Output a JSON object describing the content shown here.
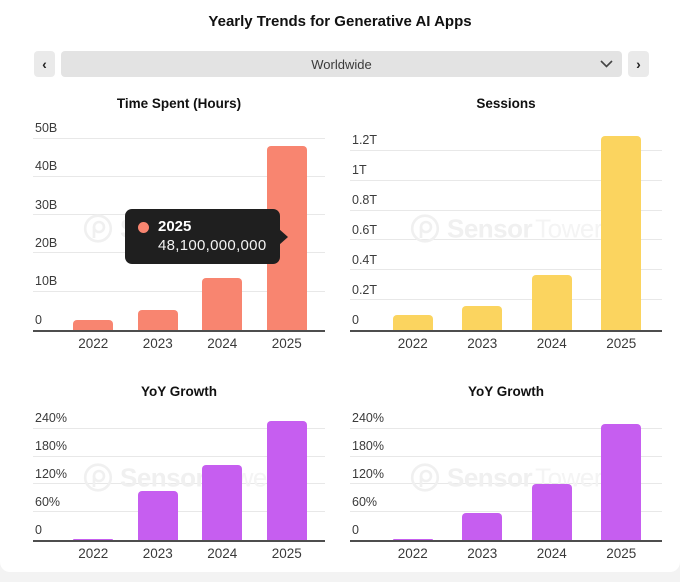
{
  "page": {
    "title": "Yearly Trends for Generative AI Apps"
  },
  "selector": {
    "value": "Worldwide",
    "prev_label": "‹",
    "next_label": "›"
  },
  "watermark": {
    "brand_bold": "Sensor",
    "brand_light": "Tower"
  },
  "colors": {
    "time_spent_bar": "#F88570",
    "sessions_bar": "#FBD45F",
    "yoy_bar": "#C65EF0",
    "tooltip_bg": "#1F1F1F",
    "gridline": "#E8E8E8",
    "axis_line": "#4E4E4E"
  },
  "chart_data": [
    {
      "id": "time-spent-hours",
      "type": "bar",
      "title": "Time Spent (Hours)",
      "categories": [
        "2022",
        "2023",
        "2024",
        "2025"
      ],
      "values": [
        2.5,
        5.2,
        13.5,
        48.1
      ],
      "unit": "billions of hours",
      "ylim": [
        0,
        53
      ],
      "yticks": [
        {
          "value": 0,
          "label": "0"
        },
        {
          "value": 10,
          "label": "10B"
        },
        {
          "value": 20,
          "label": "20B"
        },
        {
          "value": 30,
          "label": "30B"
        },
        {
          "value": 40,
          "label": "40B"
        },
        {
          "value": 50,
          "label": "50B"
        }
      ],
      "color": "#F88570",
      "tooltip": {
        "year": "2025",
        "value": "48,100,000,000"
      }
    },
    {
      "id": "sessions",
      "type": "bar",
      "title": "Sessions",
      "categories": [
        "2022",
        "2023",
        "2024",
        "2025"
      ],
      "values": [
        0.1,
        0.16,
        0.37,
        1.3
      ],
      "unit": "trillions of sessions",
      "ylim": [
        0,
        1.36
      ],
      "yticks": [
        {
          "value": 0,
          "label": "0"
        },
        {
          "value": 0.2,
          "label": "0.2T"
        },
        {
          "value": 0.4,
          "label": "0.4T"
        },
        {
          "value": 0.6,
          "label": "0.6T"
        },
        {
          "value": 0.8,
          "label": "0.8T"
        },
        {
          "value": 1.0,
          "label": "1T"
        },
        {
          "value": 1.2,
          "label": "1.2T"
        }
      ],
      "color": "#FBD45F"
    },
    {
      "id": "time-spent-yoy-growth",
      "type": "bar",
      "title": "YoY Growth",
      "categories": [
        "2022",
        "2023",
        "2024",
        "2025"
      ],
      "values": [
        3,
        105,
        162,
        256
      ],
      "unit": "percent",
      "ylim": [
        0,
        270
      ],
      "yticks": [
        {
          "value": 0,
          "label": "0"
        },
        {
          "value": 60,
          "label": "60%"
        },
        {
          "value": 120,
          "label": "120%"
        },
        {
          "value": 180,
          "label": "180%"
        },
        {
          "value": 240,
          "label": "240%"
        }
      ],
      "color": "#C65EF0"
    },
    {
      "id": "sessions-yoy-growth",
      "type": "bar",
      "title": "YoY Growth",
      "categories": [
        "2022",
        "2023",
        "2024",
        "2025"
      ],
      "values": [
        3,
        58,
        121,
        250
      ],
      "unit": "percent",
      "ylim": [
        0,
        270
      ],
      "yticks": [
        {
          "value": 0,
          "label": "0"
        },
        {
          "value": 60,
          "label": "60%"
        },
        {
          "value": 120,
          "label": "120%"
        },
        {
          "value": 180,
          "label": "180%"
        },
        {
          "value": 240,
          "label": "240%"
        }
      ],
      "color": "#C65EF0"
    }
  ]
}
